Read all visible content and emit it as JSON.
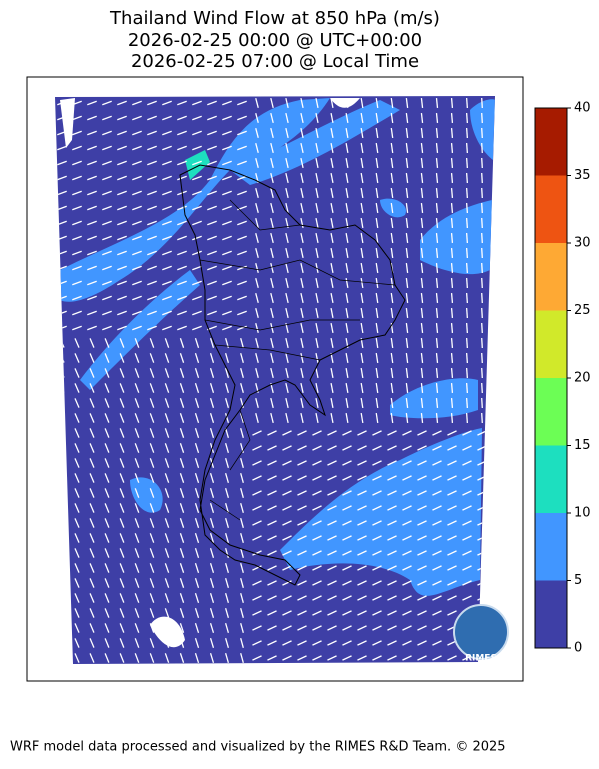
{
  "title": [
    "Thailand Wind Flow at 850 hPa (m/s)",
    "2026-02-25 00:00 @ UTC+00:00",
    "2026-02-25 07:00 @ Local Time"
  ],
  "colorbar": {
    "range": [
      0,
      40
    ],
    "ticks": [
      0,
      5,
      10,
      15,
      20,
      25,
      30,
      35,
      40
    ],
    "colors": [
      "#3e3fa6",
      "#4196ff",
      "#1ddfbf",
      "#6cfe55",
      "#d1e92a",
      "#fea934",
      "#ee5412",
      "#a61b00"
    ]
  },
  "logo": "RIMES",
  "footer": "WRF model data processed and visualized by the RIMES R&D Team. © 2025"
}
